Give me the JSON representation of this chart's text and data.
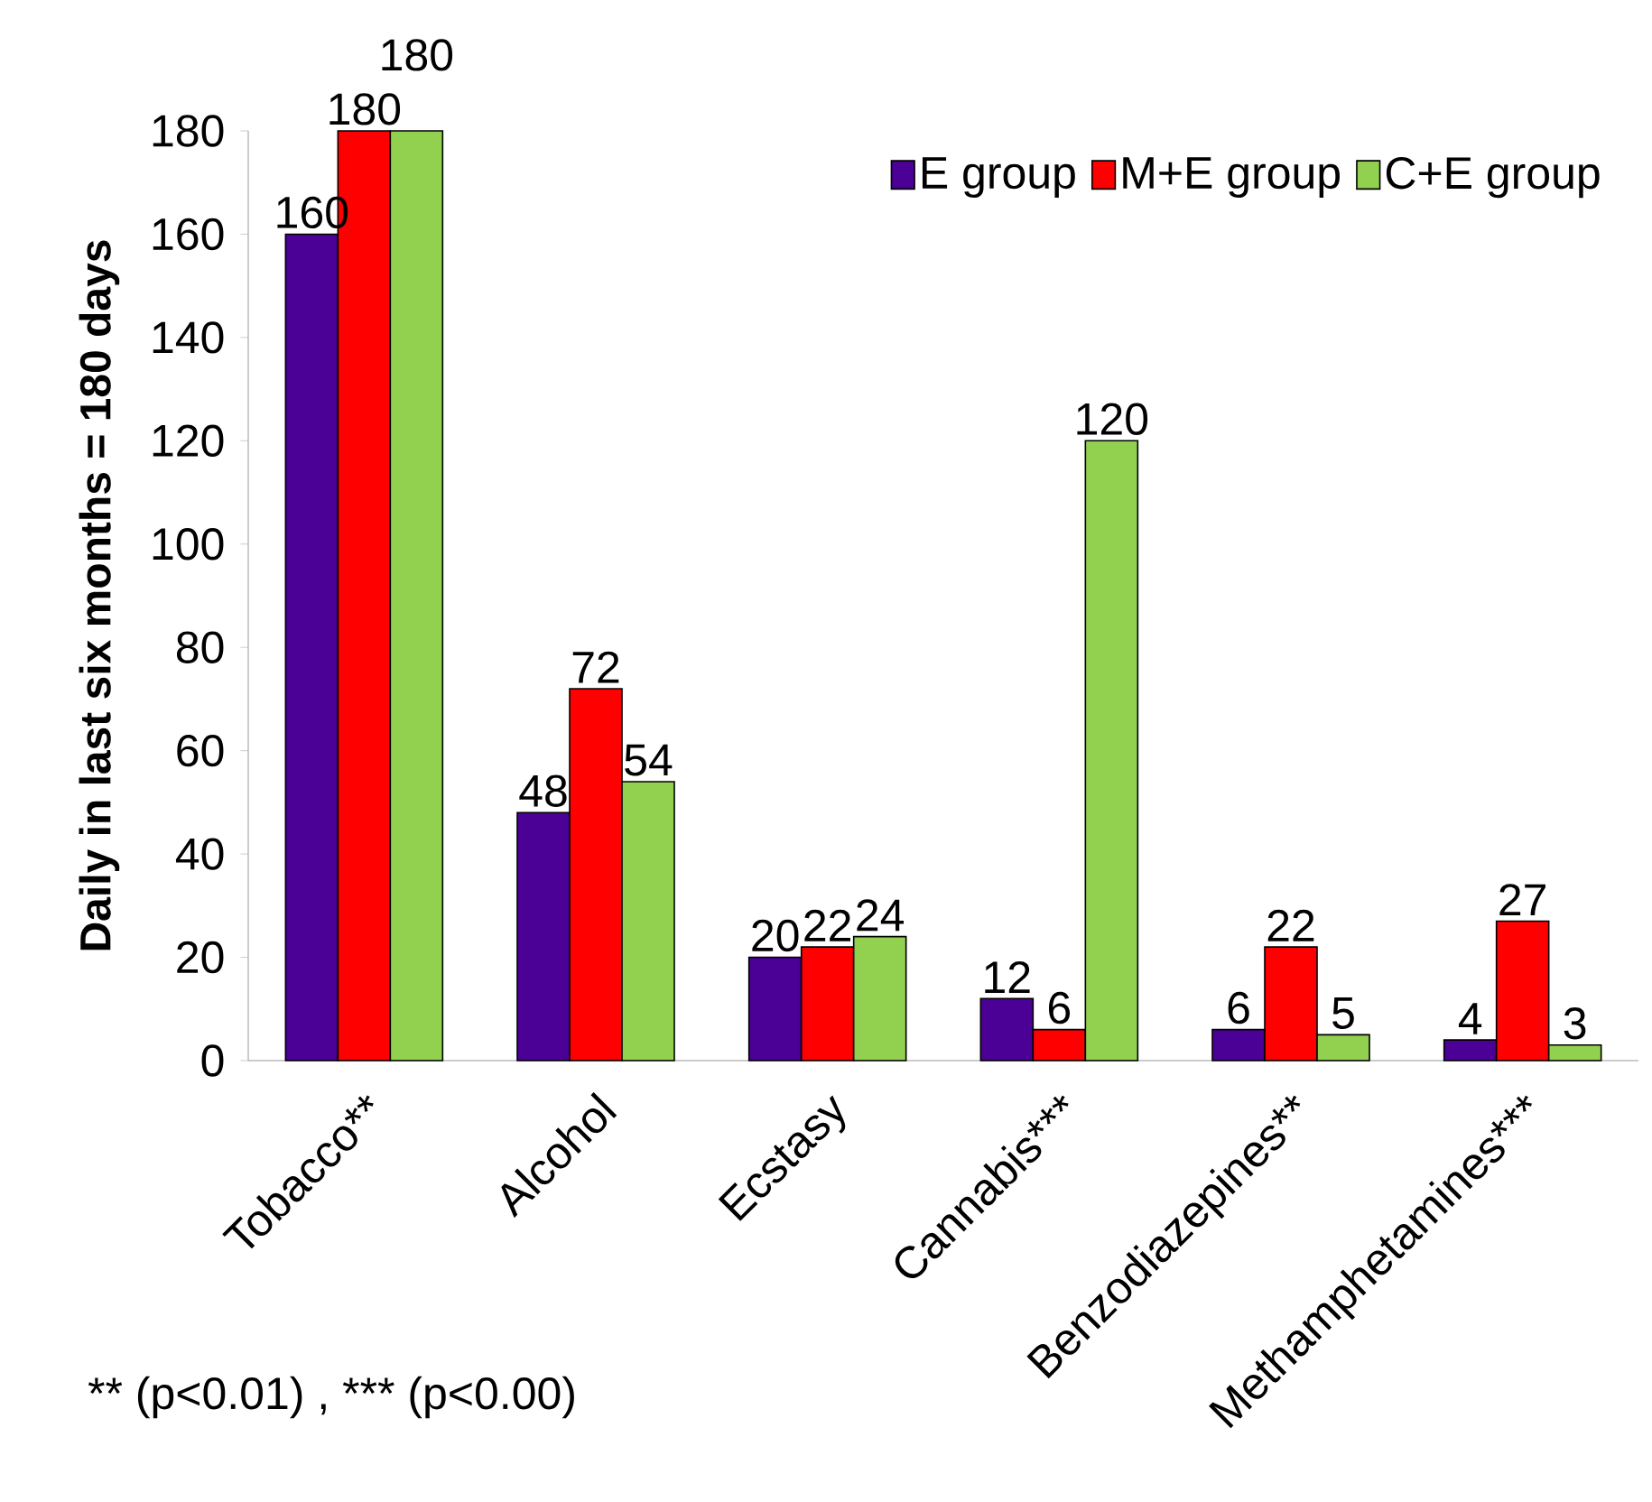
{
  "chart_data": {
    "type": "bar",
    "ylabel": "Daily in last six months = 180 days",
    "categories": [
      "Tobacco**",
      "Alcohol",
      "Ecstasy",
      "Cannabis***",
      "Benzodiazepines**",
      "Methamphetamines***"
    ],
    "series": [
      {
        "name": "E group",
        "color": "#4b0096",
        "values": [
          160,
          48,
          20,
          12,
          6,
          4
        ]
      },
      {
        "name": "M+E group",
        "color": "#ff0000",
        "values": [
          180,
          72,
          22,
          6,
          22,
          27
        ]
      },
      {
        "name": "C+E group",
        "color": "#92d050",
        "values": [
          180,
          54,
          24,
          120,
          5,
          3
        ]
      }
    ],
    "ylim": [
      0,
      180
    ],
    "yticks": [
      0,
      20,
      40,
      60,
      80,
      100,
      120,
      140,
      160,
      180
    ],
    "data_labels": true,
    "legend": "top right",
    "grid": false,
    "annotations": [
      "** (p<0.01) , *** (p<0.00)"
    ]
  }
}
